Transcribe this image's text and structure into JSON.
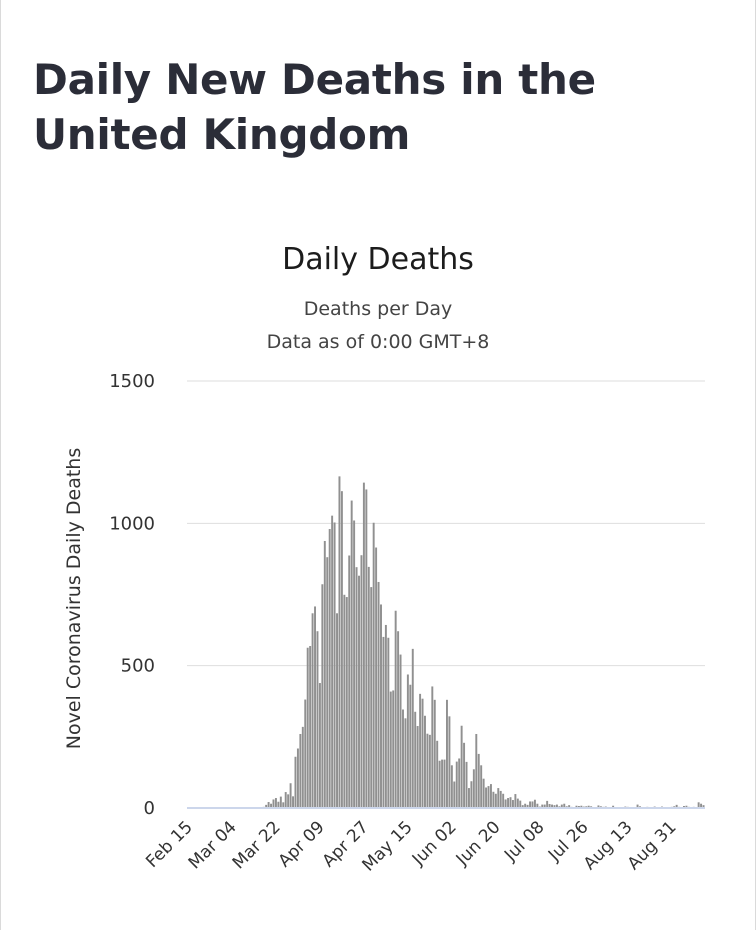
{
  "page": {
    "title": "Daily New Deaths in the United Kingdom"
  },
  "colors": {
    "bar": "#909090",
    "grid": "#dedede",
    "baseline": "#ccd6eb",
    "text": "#333333"
  },
  "chart_data": {
    "type": "bar",
    "title": "Daily Deaths",
    "subtitle": "Deaths per Day",
    "subtitle2": "Data as of 0:00 GMT+8",
    "xlabel": "",
    "ylabel": "Novel Coronavirus Daily Deaths",
    "ylim": [
      0,
      1500
    ],
    "yticks": [
      0,
      500,
      1000,
      1500
    ],
    "grid": true,
    "legend": "none",
    "x_tick_labels": [
      "Feb 15",
      "Mar 04",
      "Mar 22",
      "Apr 09",
      "Apr 27",
      "May 15",
      "Jun 02",
      "Jun 20",
      "Jul 08",
      "Jul 26",
      "Aug 13",
      "Aug 31"
    ],
    "start_date": "2020-02-15",
    "series": [
      {
        "values": [
          0,
          0,
          0,
          0,
          0,
          0,
          0,
          0,
          0,
          0,
          0,
          0,
          0,
          0,
          0,
          0,
          0,
          0,
          0,
          0,
          0,
          0,
          0,
          0,
          1,
          0,
          1,
          2,
          3,
          1,
          2,
          4,
          11,
          21,
          15,
          30,
          35,
          22,
          40,
          20,
          56,
          48,
          87,
          41,
          180,
          209,
          260,
          285,
          381,
          563,
          569,
          684,
          708,
          621,
          439,
          786,
          938,
          881,
          980,
          1027,
          1003,
          684,
          1165,
          1113,
          749,
          741,
          887,
          1080,
          1010,
          846,
          816,
          888,
          1143,
          1119,
          847,
          776,
          1002,
          915,
          794,
          715,
          601,
          643,
          598,
          409,
          413,
          693,
          621,
          539,
          346,
          315,
          469,
          433,
          559,
          338,
          288,
          401,
          384,
          324,
          261,
          257,
          427,
          380,
          236,
          166,
          170,
          170,
          380,
          322,
          150,
          93,
          163,
          174,
          289,
          229,
          162,
          70,
          94,
          136,
          260,
          190,
          150,
          103,
          72,
          77,
          84,
          57,
          50,
          70,
          60,
          50,
          30,
          35,
          38,
          28,
          49,
          33,
          26,
          10,
          15,
          11,
          23,
          23,
          29,
          15,
          5,
          12,
          12,
          25,
          14,
          12,
          10,
          12,
          6,
          12,
          15,
          6,
          10,
          4,
          3,
          8,
          7,
          8,
          5,
          6,
          8,
          6,
          1,
          3,
          9,
          6,
          4,
          5,
          3,
          2,
          8,
          3,
          2,
          3,
          3,
          5,
          4,
          2,
          1,
          2,
          12,
          6,
          3,
          0,
          4,
          1,
          3,
          5,
          3,
          3,
          5,
          3,
          1,
          2,
          4,
          6,
          11,
          4,
          1,
          7,
          8,
          4,
          2,
          4,
          2,
          20,
          15,
          10
        ]
      }
    ]
  }
}
